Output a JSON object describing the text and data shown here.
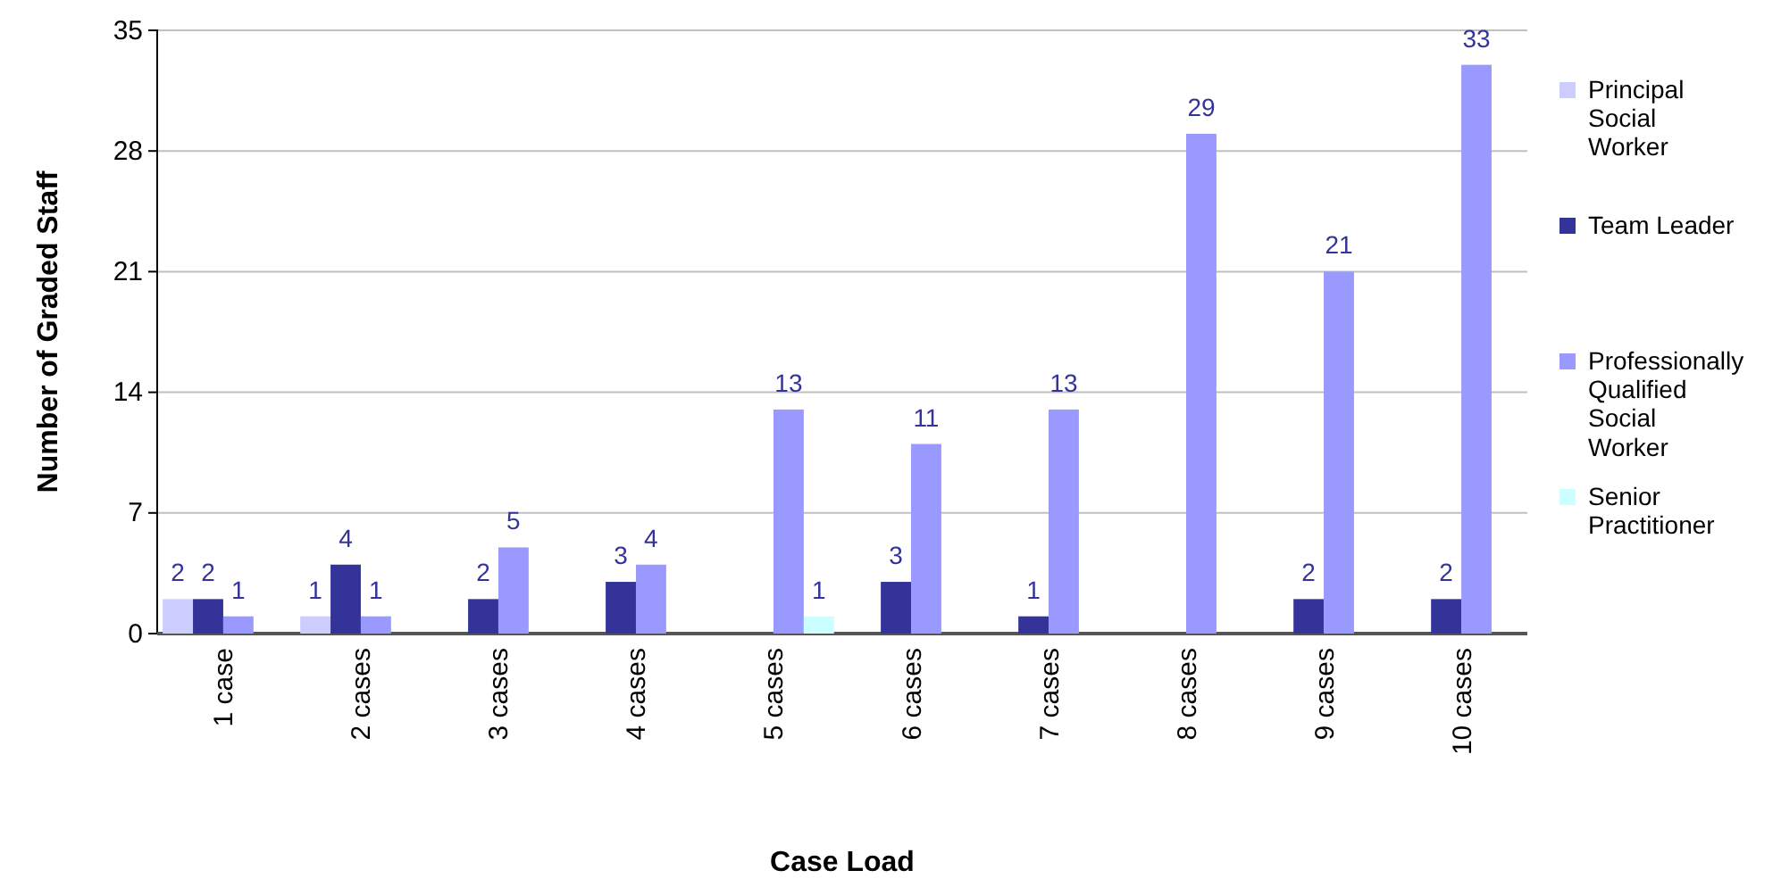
{
  "chart_data": {
    "type": "bar",
    "xlabel": "Case Load",
    "ylabel": "Number of Graded Staff",
    "categories": [
      "1 case",
      "2 cases",
      "3 cases",
      "4 cases",
      "5 cases",
      "6 cases",
      "7 cases",
      "8 cases",
      "9 cases",
      "10 cases"
    ],
    "series": [
      {
        "name": "Principal Social Worker",
        "color": "#ccccff",
        "values": [
          2,
          1,
          null,
          null,
          null,
          null,
          null,
          null,
          null,
          null
        ]
      },
      {
        "name": "Team Leader",
        "color": "#333399",
        "values": [
          2,
          4,
          2,
          3,
          null,
          3,
          1,
          null,
          2,
          2
        ]
      },
      {
        "name": "Professionally Qualified Social Worker",
        "color": "#9999ff",
        "values": [
          1,
          1,
          5,
          4,
          13,
          11,
          13,
          29,
          21,
          33
        ]
      },
      {
        "name": "Senior Practitioner",
        "color": "#ccffff",
        "values": [
          null,
          null,
          null,
          null,
          1,
          null,
          null,
          null,
          null,
          null
        ]
      }
    ],
    "ylim": [
      0,
      35
    ],
    "yticks": [
      0,
      7,
      14,
      21,
      28,
      35
    ],
    "grid": "y",
    "legend": "right",
    "data_labels": true
  }
}
